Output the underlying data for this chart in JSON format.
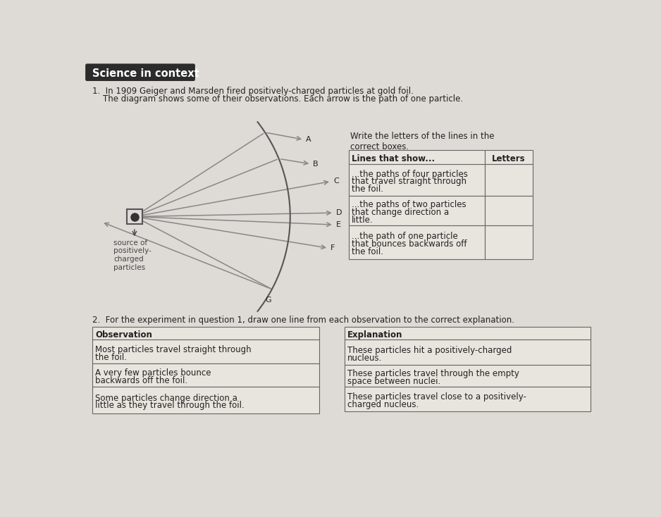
{
  "bg_color": "#dedad5",
  "title_bg": "#2b2b2b",
  "title_text": "Science in context",
  "title_color": "#ffffff",
  "q1_line1": "1.  In 1909 Geiger and Marsden fired positively-charged particles at gold foil.",
  "q1_line2": "    The diagram shows some of their observations. Each arrow is the path of one particle.",
  "write_text": "Write the letters of the lines in the\ncorrect boxes.",
  "table_header_col1": "Lines that show...",
  "table_header_col2": "Letters",
  "table_row1": "...the paths of four particles\nthat travel straight through\nthe foil.",
  "table_row2": "...the paths of two particles\nthat change direction a\nlittle.",
  "table_row3": "...the path of one particle\nthat bounces backwards off\nthe foil.",
  "source_label": "source of\npositively-\ncharged\nparticles",
  "q2_text": "2.  For the experiment in question 1, draw one line from each observation to the correct explanation.",
  "obs_header": "Observation",
  "obs_row1": "Most particles travel straight through\nthe foil.",
  "obs_row2": "A very few particles bounce\nbackwards off the foil.",
  "obs_row3": "Some particles change direction a\nlittle as they travel through the foil.",
  "exp_header": "Explanation",
  "exp_row1": "These particles hit a positively-charged\nnucleus.",
  "exp_row2": "These particles travel through the empty\nspace between nuclei.",
  "exp_row3": "These particles travel close to a positively-\ncharged nucleus.",
  "line_color": "#888888",
  "text_color": "#222222",
  "border_color": "#666666",
  "cell_bg": "#e8e4de"
}
